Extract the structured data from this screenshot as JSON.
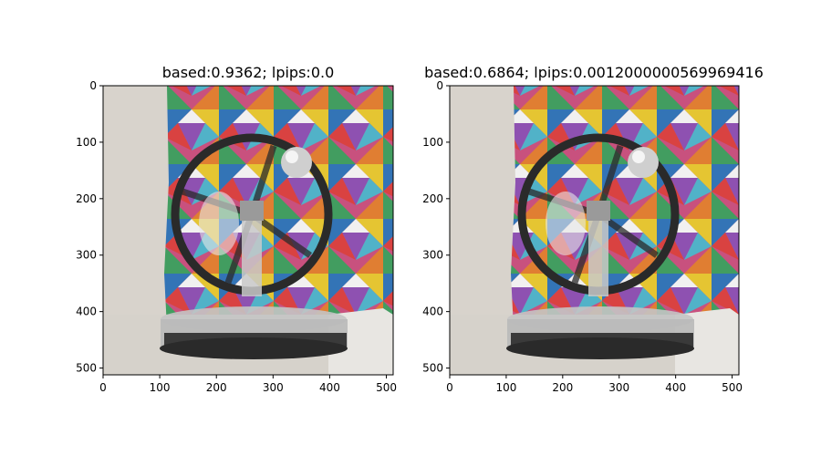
{
  "chart_data": [
    {
      "type": "image",
      "title": "based:0.9362; lpips:0.0",
      "xlim": [
        0,
        512
      ],
      "ylim": [
        512,
        0
      ],
      "xticks": [
        0,
        100,
        200,
        300,
        400,
        500
      ],
      "yticks": [
        0,
        100,
        200,
        300,
        400,
        500
      ],
      "image_description_colors": {
        "background": "#d8d3cc",
        "wheel": "#2a2a2a",
        "base": "#bfbfbf"
      }
    },
    {
      "type": "image",
      "title": "based:0.6864; lpips:0.0012000000569969416",
      "xlim": [
        0,
        512
      ],
      "ylim": [
        512,
        0
      ],
      "xticks": [
        0,
        100,
        200,
        300,
        400,
        500
      ],
      "yticks": [
        0,
        100,
        200,
        300,
        400,
        500
      ],
      "image_description_colors": {
        "background": "#d8d3cc",
        "wheel": "#2a2a2a",
        "base": "#bfbfbf"
      }
    }
  ]
}
